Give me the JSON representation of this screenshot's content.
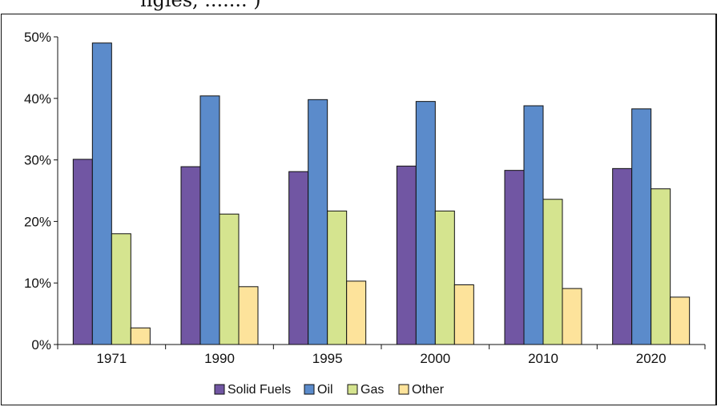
{
  "chart_data": {
    "type": "bar",
    "title": "",
    "xlabel": "",
    "ylabel": "",
    "categories": [
      "1971",
      "1990",
      "1995",
      "2000",
      "2010",
      "2020"
    ],
    "ylim": [
      0,
      50
    ],
    "yticks": [
      "0%",
      "10%",
      "20%",
      "30%",
      "40%",
      "50%"
    ],
    "grid": false,
    "legend_position": "bottom",
    "series": [
      {
        "name": "Solid Fuels",
        "color": "#7156a3",
        "values": [
          30.1,
          28.9,
          28.1,
          29.0,
          28.3,
          28.6
        ]
      },
      {
        "name": "Oil",
        "color": "#5b8bcb",
        "values": [
          49.0,
          40.4,
          39.8,
          39.5,
          38.8,
          38.3
        ]
      },
      {
        "name": "Gas",
        "color": "#d5e48f",
        "values": [
          18.0,
          21.2,
          21.7,
          21.7,
          23.6,
          25.3
        ]
      },
      {
        "name": "Other",
        "color": "#fde39b",
        "values": [
          2.7,
          9.4,
          10.3,
          9.7,
          9.1,
          7.7
        ]
      }
    ]
  }
}
